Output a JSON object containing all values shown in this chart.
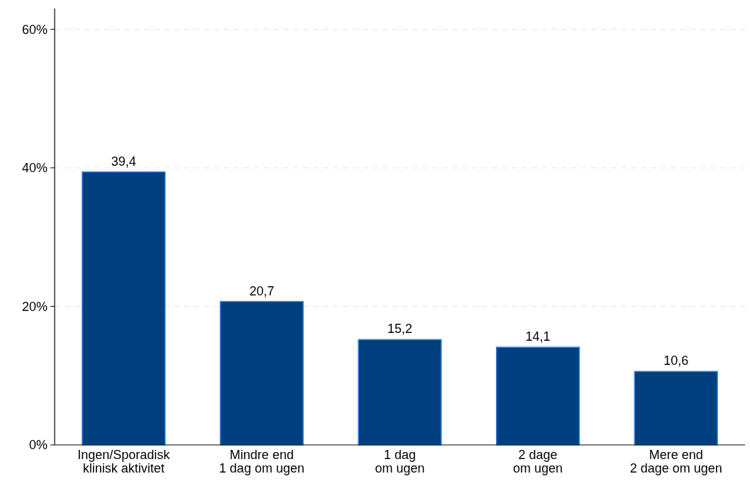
{
  "chart_data": {
    "type": "bar",
    "categories": [
      "Ingen/Sporadisk\nklinisk aktivitet",
      "Mindre end\n1 dag om ugen",
      "1 dag\nom ugen",
      "2 dage\nom ugen",
      "Mere end\n2 dage om ugen"
    ],
    "values": [
      39.4,
      20.7,
      15.2,
      14.1,
      10.6
    ],
    "value_labels": [
      "39,4",
      "20,7",
      "15,2",
      "14,1",
      "10,6"
    ],
    "color": "#003f7f",
    "ylim": [
      0,
      63
    ],
    "yticks": [
      {
        "value": 0,
        "label": "0%"
      },
      {
        "value": 20,
        "label": "20%"
      },
      {
        "value": 40,
        "label": "40%"
      },
      {
        "value": 60,
        "label": "60%"
      }
    ],
    "grid": "y"
  }
}
